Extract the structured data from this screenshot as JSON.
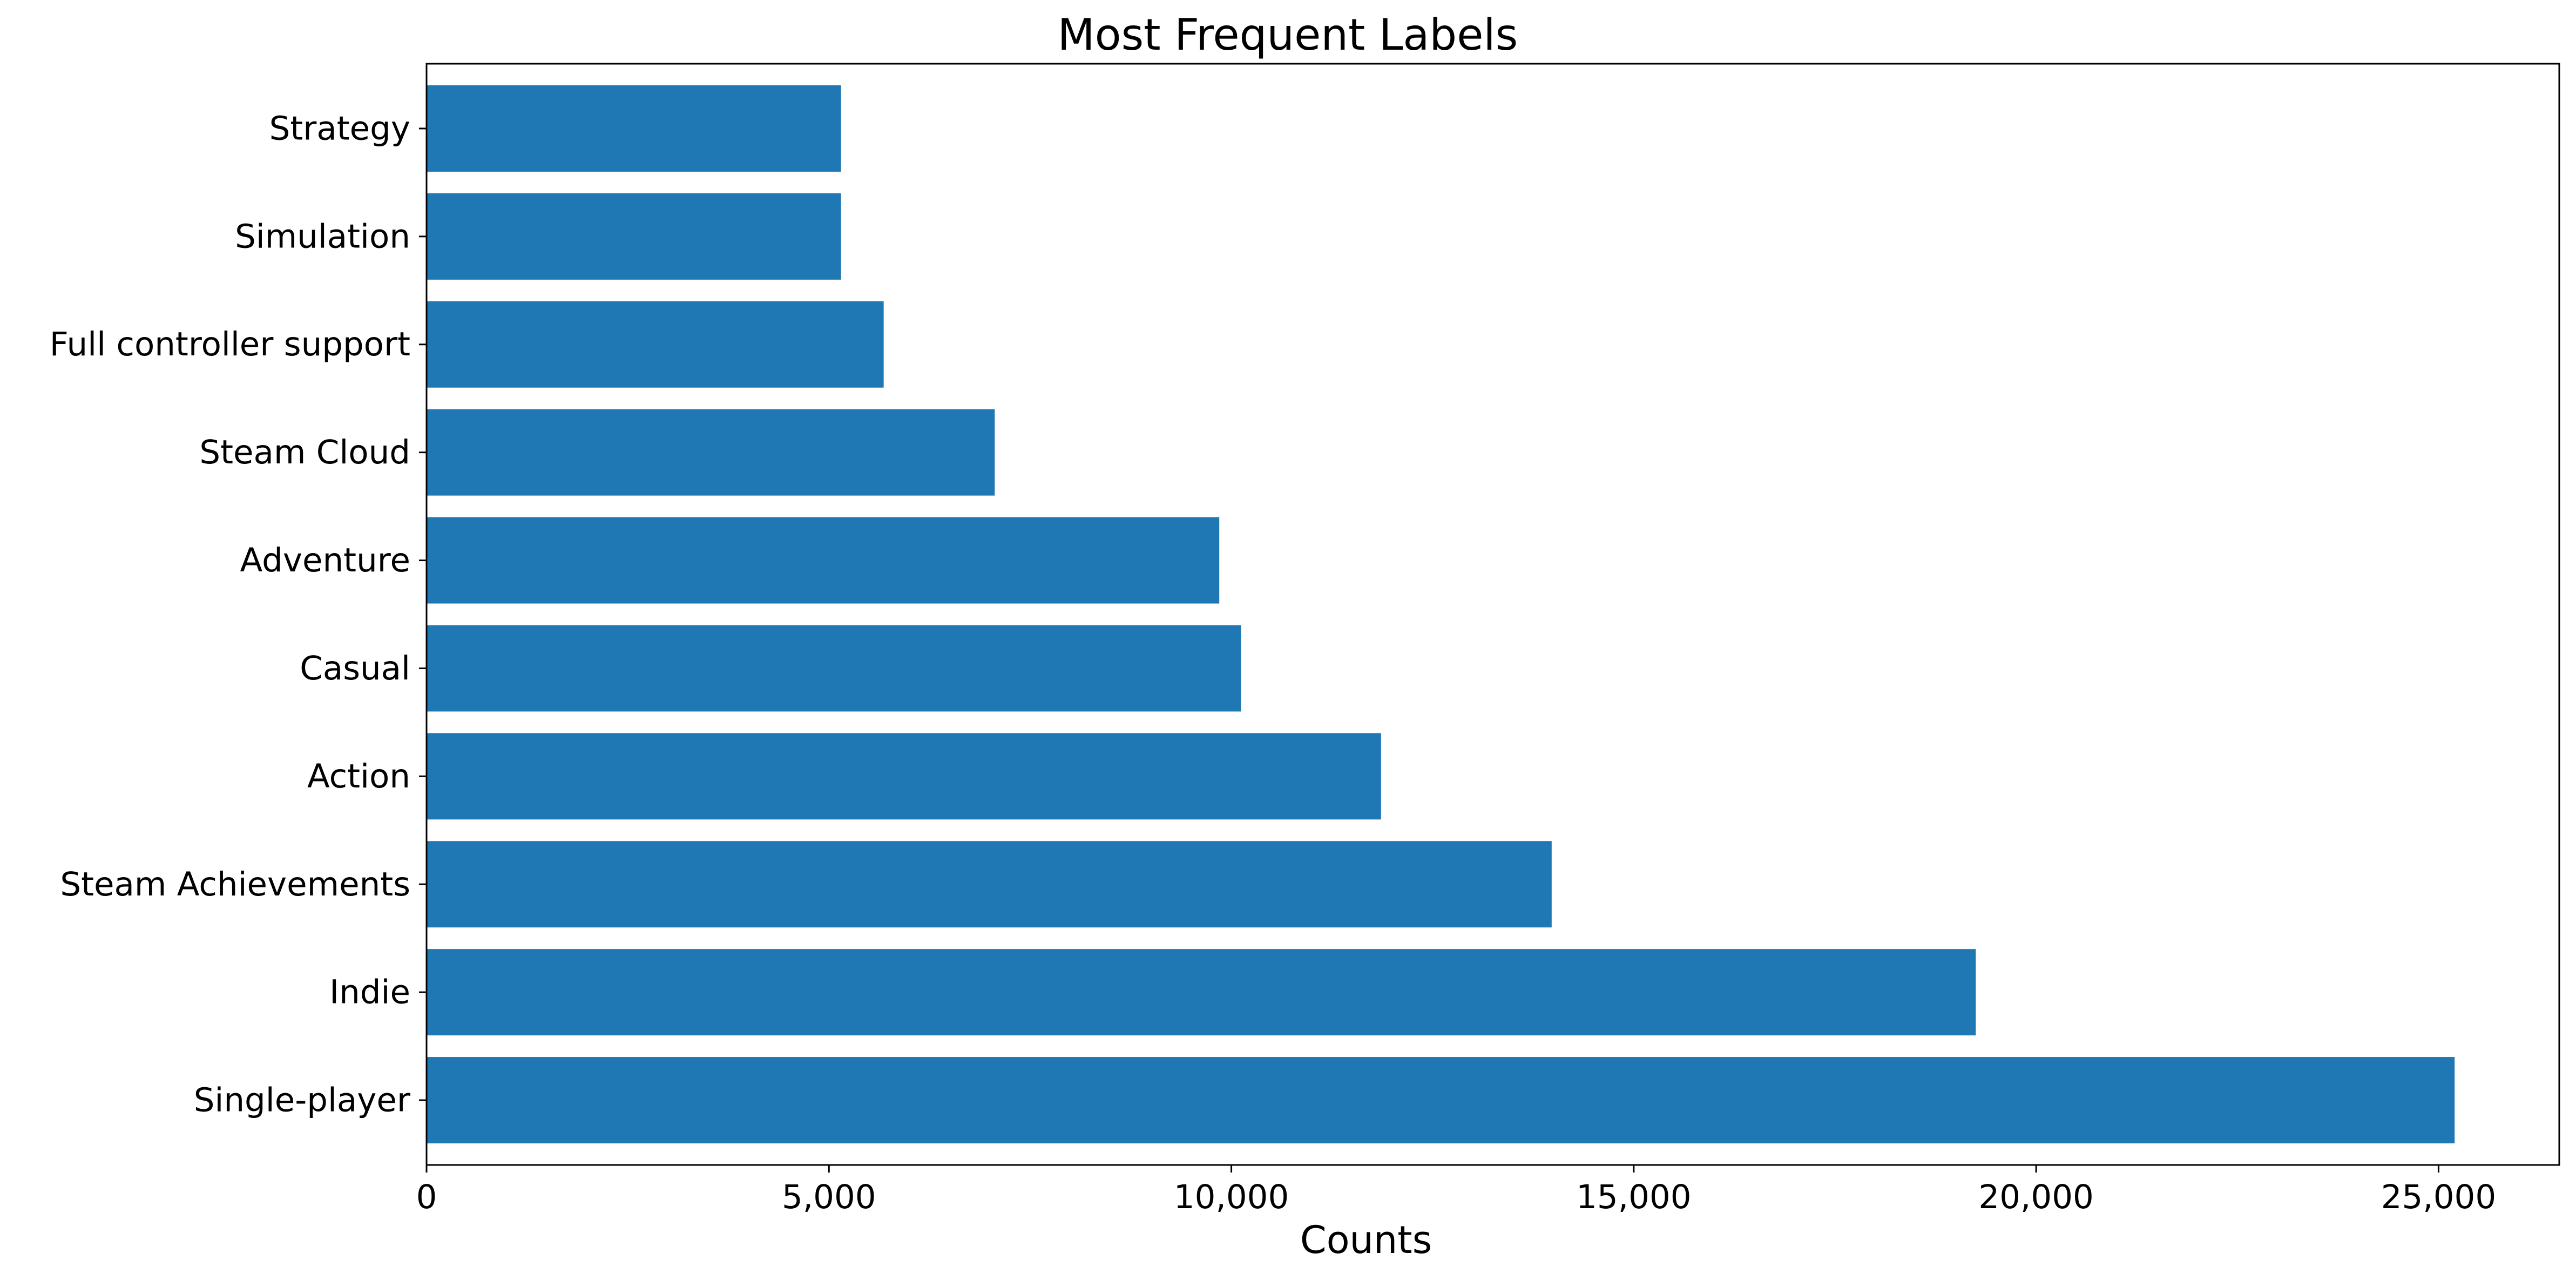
{
  "chart_data": {
    "type": "bar",
    "orientation": "horizontal",
    "title": "Most Frequent Labels",
    "xlabel": "Counts",
    "ylabel": "",
    "categories": [
      "Single-player",
      "Indie",
      "Steam Achievements",
      "Action",
      "Casual",
      "Adventure",
      "Steam Cloud",
      "Full controller support",
      "Simulation",
      "Strategy"
    ],
    "values": [
      25200,
      19250,
      13980,
      11860,
      10120,
      9850,
      7060,
      5680,
      5150,
      5150
    ],
    "xlim": [
      0,
      26500
    ],
    "xticks": [
      0,
      5000,
      10000,
      15000,
      20000,
      25000
    ],
    "xtick_labels": [
      "0",
      "5,000",
      "10,000",
      "15,000",
      "20,000",
      "25,000"
    ],
    "grid": false,
    "bar_color": "#1f77b4"
  }
}
